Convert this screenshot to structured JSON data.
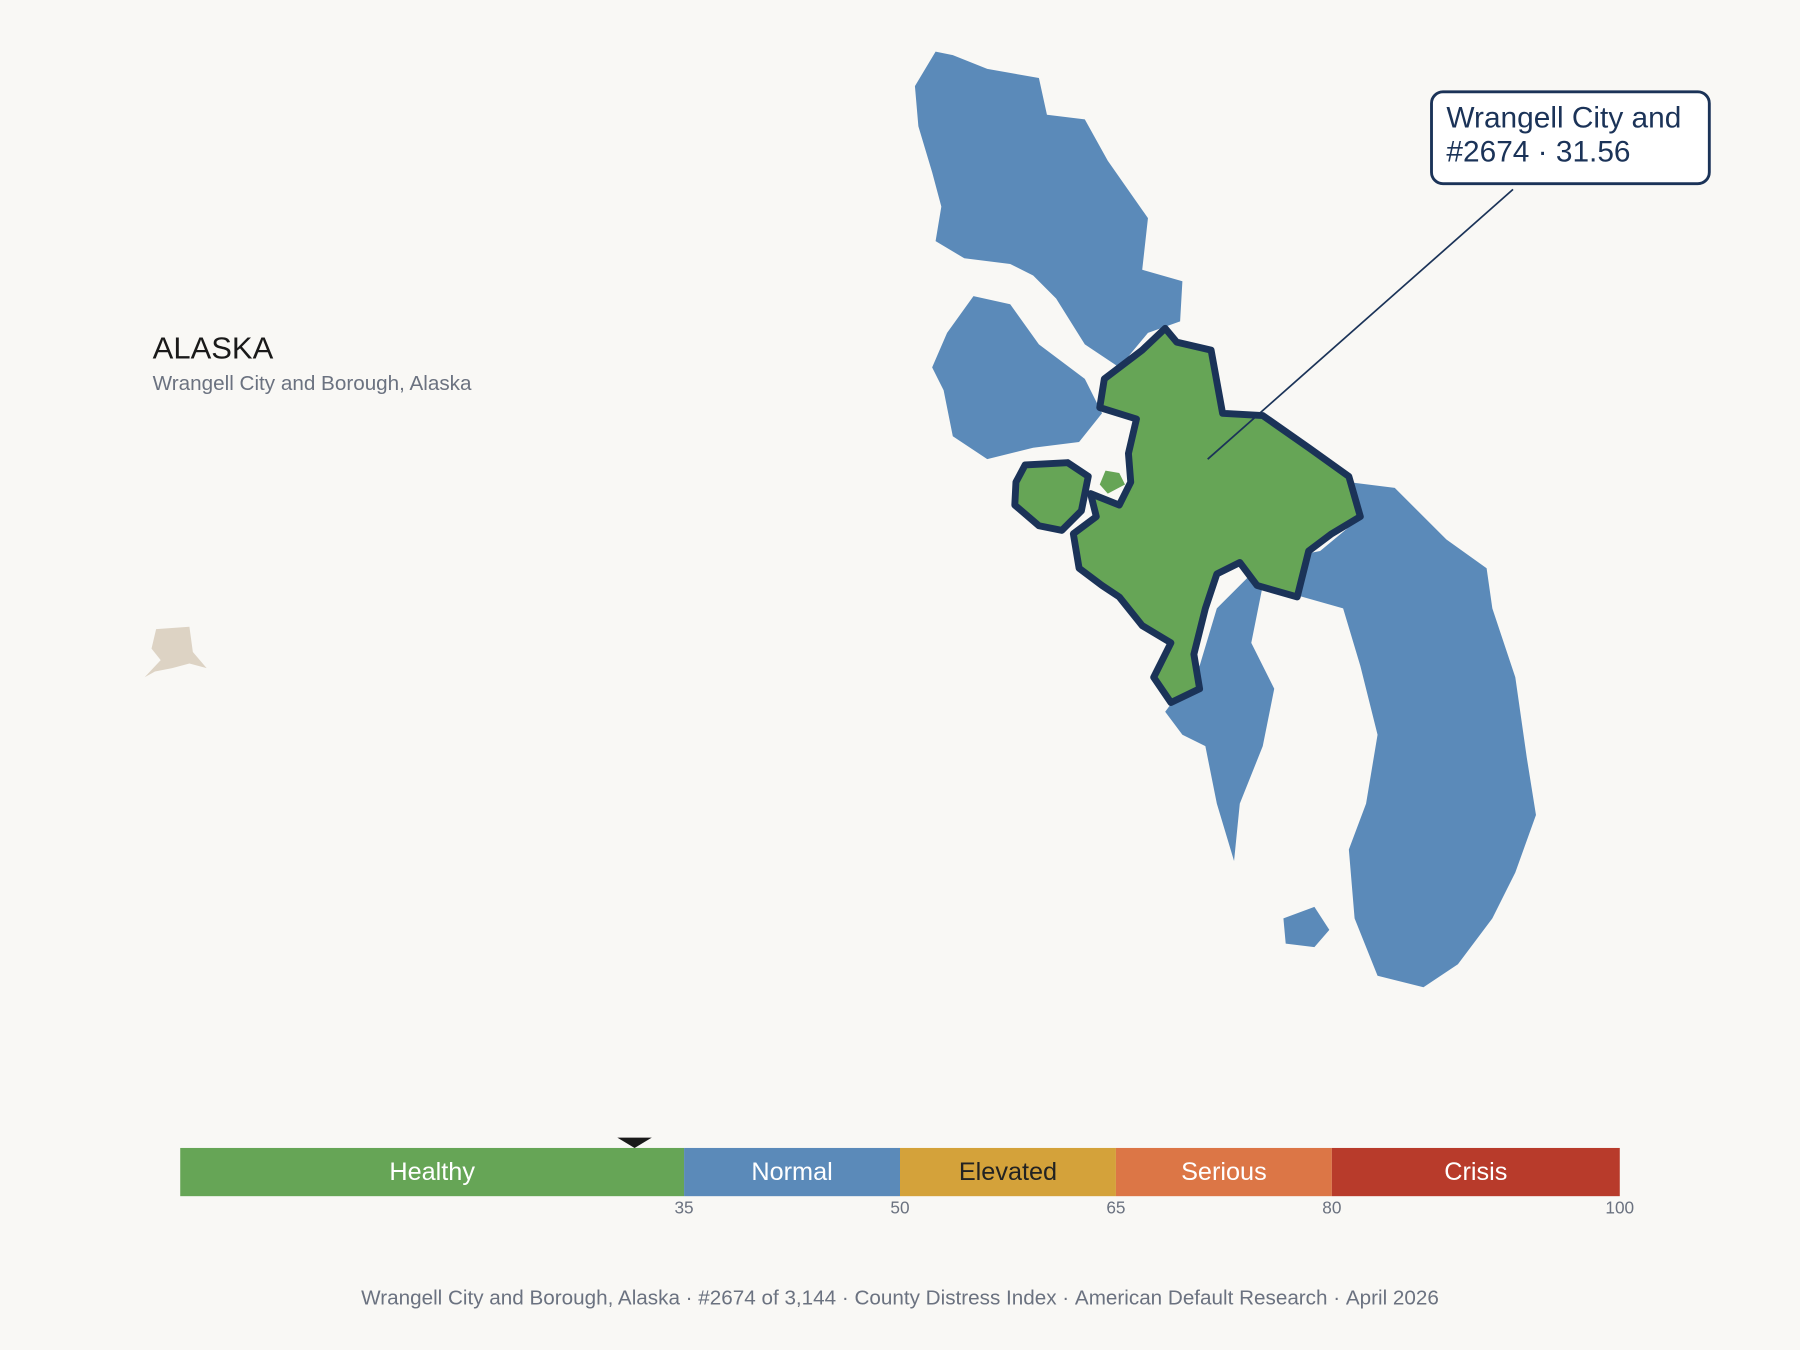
{
  "header": {
    "title": "ALASKA",
    "subtitle": "Wrangell City and Borough, Alaska"
  },
  "callout": {
    "lines": [
      "Wrangell City and",
      "#2674 · 31.56"
    ]
  },
  "scale": {
    "range": [
      0,
      100
    ],
    "ticks": [
      35,
      50,
      65,
      80,
      100
    ],
    "marker": 31.56,
    "segments": [
      {
        "label": "Healthy",
        "color": "#66a556",
        "text_color": "#ffffff"
      },
      {
        "label": "Normal",
        "color": "#5b8ab9",
        "text_color": "#ffffff"
      },
      {
        "label": "Elevated",
        "color": "#d4a23a",
        "text_color": "#222222"
      },
      {
        "label": "Serious",
        "color": "#dc7646",
        "text_color": "#ffffff"
      },
      {
        "label": "Crisis",
        "color": "#b83b2b",
        "text_color": "#ffffff"
      }
    ]
  },
  "footer": {
    "separator": "·",
    "items": [
      "Wrangell City and Borough, Alaska",
      "#2674 of 3,144",
      "County Distress Index",
      "American Default Research",
      "April 2026"
    ]
  }
}
